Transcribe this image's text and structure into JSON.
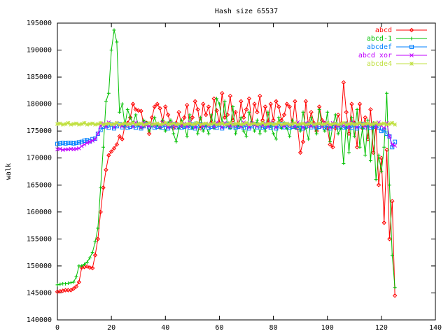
{
  "chart_data": {
    "type": "line",
    "title": "Hash size 65537",
    "y_label": "walk",
    "x": [
      0,
      1,
      2,
      3,
      4,
      5,
      6,
      7,
      8,
      9,
      10,
      11,
      12,
      13,
      14,
      15,
      16,
      17,
      18,
      19,
      20,
      21,
      22,
      23,
      24,
      25,
      26,
      27,
      28,
      29,
      30,
      31,
      32,
      33,
      34,
      35,
      36,
      37,
      38,
      39,
      40,
      41,
      42,
      43,
      44,
      45,
      46,
      47,
      48,
      49,
      50,
      51,
      52,
      53,
      54,
      55,
      56,
      57,
      58,
      59,
      60,
      61,
      62,
      63,
      64,
      65,
      66,
      67,
      68,
      69,
      70,
      71,
      72,
      73,
      74,
      75,
      76,
      77,
      78,
      79,
      80,
      81,
      82,
      83,
      84,
      85,
      86,
      87,
      88,
      89,
      90,
      91,
      92,
      93,
      94,
      95,
      96,
      97,
      98,
      99,
      100,
      101,
      102,
      103,
      104,
      105,
      106,
      107,
      108,
      109,
      110,
      111,
      112,
      113,
      114,
      115,
      116,
      117,
      118,
      119,
      120,
      121,
      122,
      123,
      124,
      125
    ],
    "xlim": [
      0,
      140
    ],
    "xticks": [
      0,
      20,
      40,
      60,
      80,
      100,
      120,
      140
    ],
    "ylim": [
      140000,
      195000
    ],
    "yticks": [
      140000,
      145000,
      150000,
      155000,
      160000,
      165000,
      170000,
      175000,
      180000,
      185000,
      190000,
      195000
    ],
    "legend": "top-right",
    "series": [
      {
        "name": "abcd",
        "color": "#ff0000",
        "values": [
          145200,
          145300,
          145400,
          145500,
          145500,
          145500,
          145800,
          146200,
          147000,
          149700,
          149800,
          149900,
          149700,
          149600,
          152000,
          155000,
          160000,
          164500,
          167800,
          170500,
          171200,
          171800,
          172500,
          174000,
          173500,
          176000,
          176500,
          177500,
          180000,
          179000,
          178800,
          178700,
          176000,
          176500,
          174500,
          177500,
          179500,
          180000,
          179200,
          176800,
          179500,
          178000,
          176000,
          175500,
          176500,
          178500,
          176000,
          177500,
          179800,
          176000,
          177500,
          180500,
          179000,
          175500,
          180000,
          178000,
          179500,
          176500,
          181000,
          178800,
          176500,
          182000,
          177500,
          178000,
          181500,
          177000,
          178500,
          176000,
          180500,
          177500,
          179000,
          181000,
          176500,
          180000,
          178500,
          181500,
          177000,
          179500,
          176500,
          180000,
          177000,
          180500,
          179500,
          177000,
          178000,
          180000,
          179500,
          176000,
          180500,
          175500,
          171000,
          173000,
          180500,
          176000,
          178500,
          176500,
          175000,
          179500,
          177000,
          176500,
          175500,
          172500,
          172000,
          175500,
          178000,
          176000,
          184000,
          178500,
          174500,
          180000,
          176500,
          172000,
          180000,
          175500,
          177500,
          173500,
          179000,
          171000,
          176000,
          165000,
          170000,
          158000,
          171500,
          155000,
          162000,
          144500
        ]
      },
      {
        "name": "abcd-1",
        "color": "#00c000",
        "values": [
          146500,
          146600,
          146700,
          146700,
          146800,
          146900,
          147000,
          148000,
          150000,
          150000,
          150300,
          150700,
          151500,
          152500,
          154500,
          157000,
          164500,
          172000,
          180500,
          182000,
          190000,
          193700,
          191500,
          178500,
          180000,
          176000,
          179000,
          177500,
          176500,
          178000,
          176000,
          175500,
          177000,
          176500,
          175000,
          176000,
          177500,
          176000,
          175500,
          177000,
          175000,
          176500,
          177000,
          174500,
          173000,
          175500,
          177000,
          176000,
          174000,
          178000,
          175500,
          176500,
          174500,
          177500,
          175000,
          176000,
          174500,
          178000,
          175500,
          181000,
          180000,
          176500,
          180500,
          176000,
          175500,
          179500,
          174500,
          176000,
          177500,
          175000,
          174000,
          178500,
          176500,
          175000,
          177000,
          174500,
          176500,
          175000,
          178500,
          176000,
          174500,
          173500,
          177500,
          175500,
          176500,
          175500,
          174000,
          177000,
          175500,
          176000,
          175000,
          178500,
          175500,
          173500,
          177500,
          176000,
          174500,
          179000,
          176000,
          175000,
          178500,
          173000,
          176000,
          178000,
          174500,
          175500,
          169000,
          176500,
          171000,
          177500,
          174000,
          179000,
          172000,
          175500,
          170500,
          177000,
          169500,
          176500,
          166000,
          170500,
          167500,
          172000,
          182000,
          165000,
          152000,
          146000
        ]
      },
      {
        "name": "abcdef",
        "color": "#0080ff",
        "values": [
          172600,
          172700,
          172800,
          172700,
          172800,
          172800,
          172700,
          172800,
          172900,
          173000,
          173200,
          173300,
          173100,
          173500,
          173600,
          174500,
          175200,
          175800,
          176000,
          175600,
          176200,
          175500,
          175900,
          176300,
          175700,
          176100,
          175600,
          175800,
          176000,
          175600,
          176200,
          175500,
          175900,
          176300,
          175700,
          176100,
          175600,
          175800,
          176000,
          175600,
          176200,
          175500,
          175900,
          176300,
          175700,
          176100,
          175600,
          175800,
          176000,
          175600,
          176200,
          175500,
          175900,
          176300,
          175700,
          176100,
          175600,
          175800,
          176000,
          175600,
          176200,
          175500,
          175900,
          176300,
          175700,
          176100,
          175600,
          175800,
          176000,
          175600,
          176200,
          175500,
          175900,
          176300,
          175700,
          176100,
          175600,
          175800,
          176000,
          175600,
          176200,
          175500,
          175900,
          176300,
          175700,
          176100,
          175600,
          175800,
          176000,
          175600,
          176200,
          175500,
          175900,
          176300,
          175700,
          176100,
          175600,
          175800,
          176000,
          175600,
          176200,
          175500,
          175900,
          176300,
          175700,
          176100,
          175600,
          175800,
          176000,
          175600,
          176200,
          175500,
          175900,
          176300,
          175700,
          176100,
          175600,
          175800,
          176000,
          175600,
          175000,
          175200,
          174500,
          174000,
          172000,
          173000
        ]
      },
      {
        "name": "abcd xor",
        "color": "#c000ff",
        "values": [
          171600,
          171700,
          171500,
          171600,
          171600,
          171700,
          171600,
          171700,
          171800,
          172200,
          172500,
          172800,
          173000,
          173200,
          173500,
          174500,
          176000,
          176400,
          175800,
          176600,
          176200,
          175700,
          176500,
          176100,
          175900,
          176300,
          176000,
          176400,
          175800,
          176600,
          176200,
          175700,
          176500,
          176100,
          175900,
          176300,
          176000,
          176400,
          175800,
          176600,
          176200,
          175700,
          176500,
          176100,
          175900,
          176300,
          176000,
          176400,
          175800,
          176600,
          176200,
          175700,
          176500,
          176100,
          175900,
          176300,
          176000,
          176400,
          175800,
          176600,
          176200,
          175700,
          176500,
          176100,
          175900,
          176300,
          176000,
          176400,
          175800,
          176600,
          176200,
          175700,
          176500,
          176100,
          175900,
          176300,
          176000,
          176400,
          175800,
          176600,
          176200,
          175700,
          176500,
          176100,
          175900,
          176300,
          176000,
          176400,
          175800,
          176600,
          176200,
          175700,
          176500,
          176100,
          175900,
          176300,
          176000,
          176400,
          175800,
          176600,
          176200,
          175700,
          176500,
          176100,
          175900,
          176300,
          176000,
          176400,
          175800,
          176600,
          176200,
          175700,
          176500,
          176100,
          175900,
          176300,
          176000,
          176400,
          175800,
          176600,
          176000,
          175500,
          176500,
          174000,
          172500,
          172300
        ]
      },
      {
        "name": "abcde4",
        "color": "#c0e040",
        "values": [
          176300,
          176400,
          176200,
          176300,
          176500,
          176200,
          176300,
          176400,
          176200,
          176300,
          176500,
          176200,
          176300,
          176400,
          176200,
          176300,
          176500,
          176200,
          176300,
          176400,
          176200,
          176300,
          176500,
          176200,
          176300,
          176400,
          176200,
          176300,
          176500,
          176200,
          176300,
          176400,
          176200,
          176300,
          176500,
          176200,
          176300,
          176400,
          176200,
          176300,
          176500,
          176200,
          176300,
          176400,
          176200,
          176300,
          176500,
          176200,
          176300,
          176400,
          176200,
          176300,
          176500,
          176200,
          176300,
          176400,
          176200,
          176300,
          176500,
          176200,
          176300,
          176400,
          176200,
          176300,
          176500,
          176200,
          176300,
          176400,
          176200,
          176300,
          176500,
          176200,
          176300,
          176400,
          176200,
          176300,
          176500,
          176200,
          176300,
          176400,
          176200,
          176300,
          176500,
          176200,
          176300,
          176400,
          176200,
          176300,
          176500,
          176200,
          176300,
          176400,
          176200,
          176300,
          176500,
          176200,
          176300,
          176400,
          176200,
          176300,
          176500,
          176200,
          176300,
          176400,
          176200,
          176300,
          176500,
          176200,
          176300,
          176400,
          176200,
          176300,
          176500,
          176200,
          176300,
          176400,
          176200,
          176300,
          176500,
          176200,
          176300,
          176400,
          176200,
          176300,
          176500,
          176200
        ]
      }
    ]
  }
}
